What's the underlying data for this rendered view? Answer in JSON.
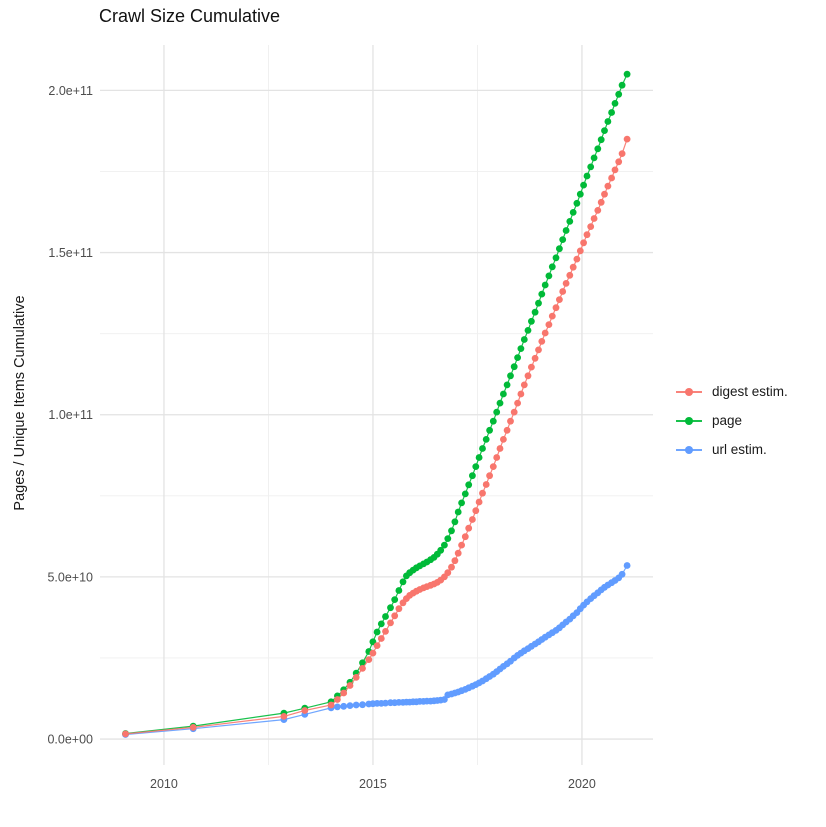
{
  "title": "Crawl Size Cumulative",
  "legend": {
    "items": [
      {
        "label": "digest estim.",
        "color": "#F8766D"
      },
      {
        "label": "page",
        "color": "#00BA38"
      },
      {
        "label": "url estim.",
        "color": "#619CFF"
      }
    ]
  },
  "colors": {
    "grid_major": "#e3e3e3",
    "grid_minor": "#efefef",
    "tick_label": "#4d4d4d",
    "text": "#1a1a1a",
    "background": "#ffffff"
  },
  "chart_data": {
    "type": "scatter",
    "title": "Crawl Size Cumulative",
    "xlabel": "",
    "ylabel": "Pages / Unique Items Cumulative",
    "grid": true,
    "legend_position": "right",
    "xlim": [
      2008.47,
      2021.7
    ],
    "ylim": [
      -8000000000.0,
      214000000000.0
    ],
    "x_ticks": {
      "major": [
        {
          "label": "2010",
          "value": 2010
        },
        {
          "label": "2015",
          "value": 2015
        },
        {
          "label": "2020",
          "value": 2020
        }
      ],
      "minor": [
        2012.5,
        2017.5
      ]
    },
    "y_ticks": {
      "major": [
        {
          "label": "0.0e+00",
          "value": 0
        },
        {
          "label": "5.0e+10",
          "value": 50000000000.0
        },
        {
          "label": "1.0e+11",
          "value": 100000000000.0
        },
        {
          "label": "1.5e+11",
          "value": 150000000000.0
        },
        {
          "label": "2.0e+11",
          "value": 200000000000.0
        }
      ],
      "minor": [
        25000000000.0,
        75000000000.0,
        125000000000.0,
        175000000000.0
      ]
    },
    "series": [
      {
        "name": "url estim.",
        "color": "#619CFF",
        "points": [
          [
            2009.08,
            1400000000.0
          ],
          [
            2010.7,
            3200000000.0
          ],
          [
            2012.87,
            6000000000.0
          ],
          [
            2013.37,
            7600000000.0
          ],
          [
            2014.0,
            9600000000.0
          ],
          [
            2014.15,
            9900000000.0
          ],
          [
            2014.3,
            10100000000.0
          ],
          [
            2014.45,
            10300000000.0
          ],
          [
            2014.6,
            10500000000.0
          ],
          [
            2014.75,
            10600000000.0
          ],
          [
            2014.9,
            10800000000.0
          ],
          [
            2015.0,
            10900000000.0
          ],
          [
            2015.1,
            11000000000.0
          ],
          [
            2015.2,
            11000000000.0
          ],
          [
            2015.3,
            11100000000.0
          ],
          [
            2015.42,
            11200000000.0
          ],
          [
            2015.52,
            11200000000.0
          ],
          [
            2015.62,
            11300000000.0
          ],
          [
            2015.72,
            11300000000.0
          ],
          [
            2015.8,
            11400000000.0
          ],
          [
            2015.88,
            11400000000.0
          ],
          [
            2015.96,
            11500000000.0
          ],
          [
            2016.04,
            11500000000.0
          ],
          [
            2016.12,
            11600000000.0
          ],
          [
            2016.21,
            11600000000.0
          ],
          [
            2016.29,
            11700000000.0
          ],
          [
            2016.38,
            11700000000.0
          ],
          [
            2016.46,
            11800000000.0
          ],
          [
            2016.54,
            11900000000.0
          ],
          [
            2016.62,
            12000000000.0
          ],
          [
            2016.71,
            12200000000.0
          ],
          [
            2016.79,
            13600000000.0
          ],
          [
            2016.88,
            13900000000.0
          ],
          [
            2016.96,
            14200000000.0
          ],
          [
            2017.04,
            14500000000.0
          ],
          [
            2017.12,
            14900000000.0
          ],
          [
            2017.21,
            15300000000.0
          ],
          [
            2017.29,
            15800000000.0
          ],
          [
            2017.38,
            16300000000.0
          ],
          [
            2017.46,
            16800000000.0
          ],
          [
            2017.54,
            17300000000.0
          ],
          [
            2017.62,
            17900000000.0
          ],
          [
            2017.71,
            18600000000.0
          ],
          [
            2017.79,
            19300000000.0
          ],
          [
            2017.88,
            20000000000.0
          ],
          [
            2017.96,
            20800000000.0
          ],
          [
            2018.04,
            21600000000.0
          ],
          [
            2018.12,
            22400000000.0
          ],
          [
            2018.21,
            23200000000.0
          ],
          [
            2018.29,
            24000000000.0
          ],
          [
            2018.38,
            25000000000.0
          ],
          [
            2018.46,
            25800000000.0
          ],
          [
            2018.54,
            26500000000.0
          ],
          [
            2018.62,
            27200000000.0
          ],
          [
            2018.71,
            27900000000.0
          ],
          [
            2018.79,
            28600000000.0
          ],
          [
            2018.88,
            29300000000.0
          ],
          [
            2018.96,
            30000000000.0
          ],
          [
            2019.04,
            30700000000.0
          ],
          [
            2019.12,
            31400000000.0
          ],
          [
            2019.21,
            32100000000.0
          ],
          [
            2019.29,
            32800000000.0
          ],
          [
            2019.38,
            33500000000.0
          ],
          [
            2019.46,
            34300000000.0
          ],
          [
            2019.54,
            35200000000.0
          ],
          [
            2019.62,
            36100000000.0
          ],
          [
            2019.71,
            37000000000.0
          ],
          [
            2019.79,
            38000000000.0
          ],
          [
            2019.88,
            39000000000.0
          ],
          [
            2019.96,
            40200000000.0
          ],
          [
            2020.04,
            41300000000.0
          ],
          [
            2020.12,
            42300000000.0
          ],
          [
            2020.21,
            43300000000.0
          ],
          [
            2020.29,
            44200000000.0
          ],
          [
            2020.38,
            45100000000.0
          ],
          [
            2020.46,
            46000000000.0
          ],
          [
            2020.54,
            46800000000.0
          ],
          [
            2020.62,
            47500000000.0
          ],
          [
            2020.71,
            48200000000.0
          ],
          [
            2020.79,
            48900000000.0
          ],
          [
            2020.88,
            49700000000.0
          ],
          [
            2020.96,
            50800000000.0
          ],
          [
            2021.08,
            53500000000.0
          ]
        ]
      },
      {
        "name": "page",
        "color": "#00BA38",
        "points": [
          [
            2009.08,
            1700000000.0
          ],
          [
            2010.7,
            4000000000.0
          ],
          [
            2012.87,
            8000000000.0
          ],
          [
            2013.37,
            9500000000.0
          ],
          [
            2014.0,
            11500000000.0
          ],
          [
            2014.15,
            13300000000.0
          ],
          [
            2014.3,
            15200000000.0
          ],
          [
            2014.45,
            17500000000.0
          ],
          [
            2014.6,
            20300000000.0
          ],
          [
            2014.75,
            23500000000.0
          ],
          [
            2014.9,
            27000000000.0
          ],
          [
            2015.0,
            30000000000.0
          ],
          [
            2015.1,
            33000000000.0
          ],
          [
            2015.2,
            35500000000.0
          ],
          [
            2015.3,
            37800000000.0
          ],
          [
            2015.42,
            40500000000.0
          ],
          [
            2015.52,
            43000000000.0
          ],
          [
            2015.62,
            45800000000.0
          ],
          [
            2015.72,
            48500000000.0
          ],
          [
            2015.8,
            50300000000.0
          ],
          [
            2015.88,
            51300000000.0
          ],
          [
            2015.96,
            52100000000.0
          ],
          [
            2016.04,
            52800000000.0
          ],
          [
            2016.12,
            53400000000.0
          ],
          [
            2016.21,
            54000000000.0
          ],
          [
            2016.29,
            54600000000.0
          ],
          [
            2016.38,
            55300000000.0
          ],
          [
            2016.46,
            56000000000.0
          ],
          [
            2016.54,
            57000000000.0
          ],
          [
            2016.62,
            58200000000.0
          ],
          [
            2016.71,
            59800000000.0
          ],
          [
            2016.79,
            61800000000.0
          ],
          [
            2016.88,
            64200000000.0
          ],
          [
            2016.96,
            67000000000.0
          ],
          [
            2017.04,
            70000000000.0
          ],
          [
            2017.12,
            72800000000.0
          ],
          [
            2017.21,
            75600000000.0
          ],
          [
            2017.29,
            78400000000.0
          ],
          [
            2017.38,
            81200000000.0
          ],
          [
            2017.46,
            84000000000.0
          ],
          [
            2017.54,
            86800000000.0
          ],
          [
            2017.62,
            89600000000.0
          ],
          [
            2017.71,
            92400000000.0
          ],
          [
            2017.79,
            95200000000.0
          ],
          [
            2017.88,
            98000000000.0
          ],
          [
            2017.96,
            100800000000.0
          ],
          [
            2018.04,
            103600000000.0
          ],
          [
            2018.12,
            106400000000.0
          ],
          [
            2018.21,
            109200000000.0
          ],
          [
            2018.29,
            112000000000.0
          ],
          [
            2018.38,
            114800000000.0
          ],
          [
            2018.46,
            117600000000.0
          ],
          [
            2018.54,
            120400000000.0
          ],
          [
            2018.62,
            123200000000.0
          ],
          [
            2018.71,
            126000000000.0
          ],
          [
            2018.79,
            128800000000.0
          ],
          [
            2018.88,
            131600000000.0
          ],
          [
            2018.96,
            134400000000.0
          ],
          [
            2019.04,
            137200000000.0
          ],
          [
            2019.12,
            140000000000.0
          ],
          [
            2019.21,
            142800000000.0
          ],
          [
            2019.29,
            145600000000.0
          ],
          [
            2019.38,
            148400000000.0
          ],
          [
            2019.46,
            151200000000.0
          ],
          [
            2019.54,
            154000000000.0
          ],
          [
            2019.62,
            156800000000.0
          ],
          [
            2019.71,
            159600000000.0
          ],
          [
            2019.79,
            162400000000.0
          ],
          [
            2019.88,
            165200000000.0
          ],
          [
            2019.96,
            168000000000.0
          ],
          [
            2020.04,
            170800000000.0
          ],
          [
            2020.12,
            173600000000.0
          ],
          [
            2020.21,
            176400000000.0
          ],
          [
            2020.29,
            179200000000.0
          ],
          [
            2020.38,
            182000000000.0
          ],
          [
            2020.46,
            184800000000.0
          ],
          [
            2020.54,
            187600000000.0
          ],
          [
            2020.62,
            190400000000.0
          ],
          [
            2020.71,
            193200000000.0
          ],
          [
            2020.79,
            196000000000.0
          ],
          [
            2020.88,
            198800000000.0
          ],
          [
            2020.96,
            201600000000.0
          ],
          [
            2021.08,
            205000000000.0
          ]
        ]
      },
      {
        "name": "digest estim.",
        "color": "#F8766D",
        "points": [
          [
            2009.08,
            1600000000.0
          ],
          [
            2010.7,
            3600000000.0
          ],
          [
            2012.87,
            7000000000.0
          ],
          [
            2013.37,
            8800000000.0
          ],
          [
            2014.0,
            10500000000.0
          ],
          [
            2014.15,
            12200000000.0
          ],
          [
            2014.3,
            14200000000.0
          ],
          [
            2014.45,
            16500000000.0
          ],
          [
            2014.6,
            19000000000.0
          ],
          [
            2014.75,
            21800000000.0
          ],
          [
            2014.9,
            24500000000.0
          ],
          [
            2015.0,
            26500000000.0
          ],
          [
            2015.1,
            28800000000.0
          ],
          [
            2015.2,
            31000000000.0
          ],
          [
            2015.3,
            33200000000.0
          ],
          [
            2015.42,
            35800000000.0
          ],
          [
            2015.52,
            38000000000.0
          ],
          [
            2015.62,
            40200000000.0
          ],
          [
            2015.72,
            42000000000.0
          ],
          [
            2015.8,
            43300000000.0
          ],
          [
            2015.88,
            44300000000.0
          ],
          [
            2015.96,
            45000000000.0
          ],
          [
            2016.04,
            45600000000.0
          ],
          [
            2016.12,
            46100000000.0
          ],
          [
            2016.21,
            46600000000.0
          ],
          [
            2016.29,
            47000000000.0
          ],
          [
            2016.38,
            47400000000.0
          ],
          [
            2016.46,
            47800000000.0
          ],
          [
            2016.54,
            48300000000.0
          ],
          [
            2016.62,
            49000000000.0
          ],
          [
            2016.71,
            50000000000.0
          ],
          [
            2016.79,
            51300000000.0
          ],
          [
            2016.88,
            53000000000.0
          ],
          [
            2016.96,
            55000000000.0
          ],
          [
            2017.04,
            57300000000.0
          ],
          [
            2017.12,
            59800000000.0
          ],
          [
            2017.21,
            62400000000.0
          ],
          [
            2017.29,
            65000000000.0
          ],
          [
            2017.38,
            67700000000.0
          ],
          [
            2017.46,
            70400000000.0
          ],
          [
            2017.54,
            73100000000.0
          ],
          [
            2017.62,
            75800000000.0
          ],
          [
            2017.71,
            78500000000.0
          ],
          [
            2017.79,
            81200000000.0
          ],
          [
            2017.88,
            84000000000.0
          ],
          [
            2017.96,
            86800000000.0
          ],
          [
            2018.04,
            89600000000.0
          ],
          [
            2018.12,
            92400000000.0
          ],
          [
            2018.21,
            95200000000.0
          ],
          [
            2018.29,
            98000000000.0
          ],
          [
            2018.38,
            100800000000.0
          ],
          [
            2018.46,
            103600000000.0
          ],
          [
            2018.54,
            106400000000.0
          ],
          [
            2018.62,
            109200000000.0
          ],
          [
            2018.71,
            112000000000.0
          ],
          [
            2018.79,
            114700000000.0
          ],
          [
            2018.88,
            117400000000.0
          ],
          [
            2018.96,
            120000000000.0
          ],
          [
            2019.04,
            122600000000.0
          ],
          [
            2019.12,
            125200000000.0
          ],
          [
            2019.21,
            127800000000.0
          ],
          [
            2019.29,
            130400000000.0
          ],
          [
            2019.38,
            133000000000.0
          ],
          [
            2019.46,
            135500000000.0
          ],
          [
            2019.54,
            138000000000.0
          ],
          [
            2019.62,
            140500000000.0
          ],
          [
            2019.71,
            143000000000.0
          ],
          [
            2019.79,
            145500000000.0
          ],
          [
            2019.88,
            148000000000.0
          ],
          [
            2019.96,
            150500000000.0
          ],
          [
            2020.04,
            153000000000.0
          ],
          [
            2020.12,
            155500000000.0
          ],
          [
            2020.21,
            158000000000.0
          ],
          [
            2020.29,
            160500000000.0
          ],
          [
            2020.38,
            163000000000.0
          ],
          [
            2020.46,
            165500000000.0
          ],
          [
            2020.54,
            168000000000.0
          ],
          [
            2020.62,
            170500000000.0
          ],
          [
            2020.71,
            173000000000.0
          ],
          [
            2020.79,
            175500000000.0
          ],
          [
            2020.88,
            178000000000.0
          ],
          [
            2020.96,
            180500000000.0
          ],
          [
            2021.08,
            185000000000.0
          ]
        ]
      }
    ]
  }
}
